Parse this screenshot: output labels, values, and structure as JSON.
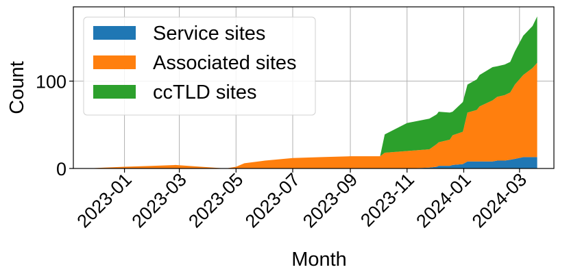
{
  "chart_data": {
    "type": "area",
    "stacked": true,
    "xlabel": "Month",
    "ylabel": "Count",
    "x_ticks": [
      "2023-01",
      "2023-03",
      "2023-05",
      "2023-07",
      "2023-09",
      "2023-11",
      "2024-01",
      "2024-03"
    ],
    "y_ticks": [
      0,
      100
    ],
    "ylim": [
      0,
      185
    ],
    "xlim": [
      "2022-11-07",
      "2024-04-07"
    ],
    "grid": true,
    "legend_position": "top-left",
    "x": [
      "2022-11-22",
      "2022-12-10",
      "2023-01-01",
      "2023-02-01",
      "2023-02-25",
      "2023-03-10",
      "2023-04-20",
      "2023-05-01",
      "2023-05-10",
      "2023-06-01",
      "2023-07-01",
      "2023-08-01",
      "2023-09-01",
      "2023-10-03",
      "2023-10-08",
      "2023-11-01",
      "2023-11-25",
      "2023-12-03",
      "2023-12-05",
      "2023-12-17",
      "2023-12-20",
      "2023-12-31",
      "2024-01-05",
      "2024-01-15",
      "2024-01-18",
      "2024-02-01",
      "2024-02-06",
      "2024-02-14",
      "2024-02-20",
      "2024-02-25",
      "2024-03-05",
      "2024-03-15",
      "2024-03-20"
    ],
    "series": [
      {
        "name": "Service sites",
        "color": "#1f77b4",
        "values": [
          0,
          0,
          0,
          0,
          0,
          0,
          0,
          0,
          0,
          0,
          0,
          0,
          0,
          0,
          0,
          0,
          1,
          2,
          3,
          3,
          4,
          5,
          8,
          8,
          8,
          8,
          9,
          9,
          10,
          11,
          13,
          13,
          13
        ]
      },
      {
        "name": "Associated sites",
        "color": "#ff7f0e",
        "values": [
          0,
          1,
          2,
          3,
          4,
          3,
          0,
          2,
          6,
          9,
          12,
          13,
          14,
          14,
          18,
          20,
          21,
          26,
          27,
          30,
          34,
          37,
          56,
          59,
          63,
          70,
          73,
          75,
          77,
          85,
          94,
          102,
          108
        ]
      },
      {
        "name": "ccTLD sites",
        "color": "#2ca02c",
        "values": [
          0,
          0,
          0,
          0,
          0,
          0,
          0,
          0,
          0,
          0,
          0,
          0,
          0,
          0,
          21,
          32,
          35,
          34,
          35,
          31,
          27,
          34,
          32,
          35,
          36,
          38,
          35,
          35,
          35,
          38,
          45,
          48,
          53
        ]
      }
    ]
  }
}
